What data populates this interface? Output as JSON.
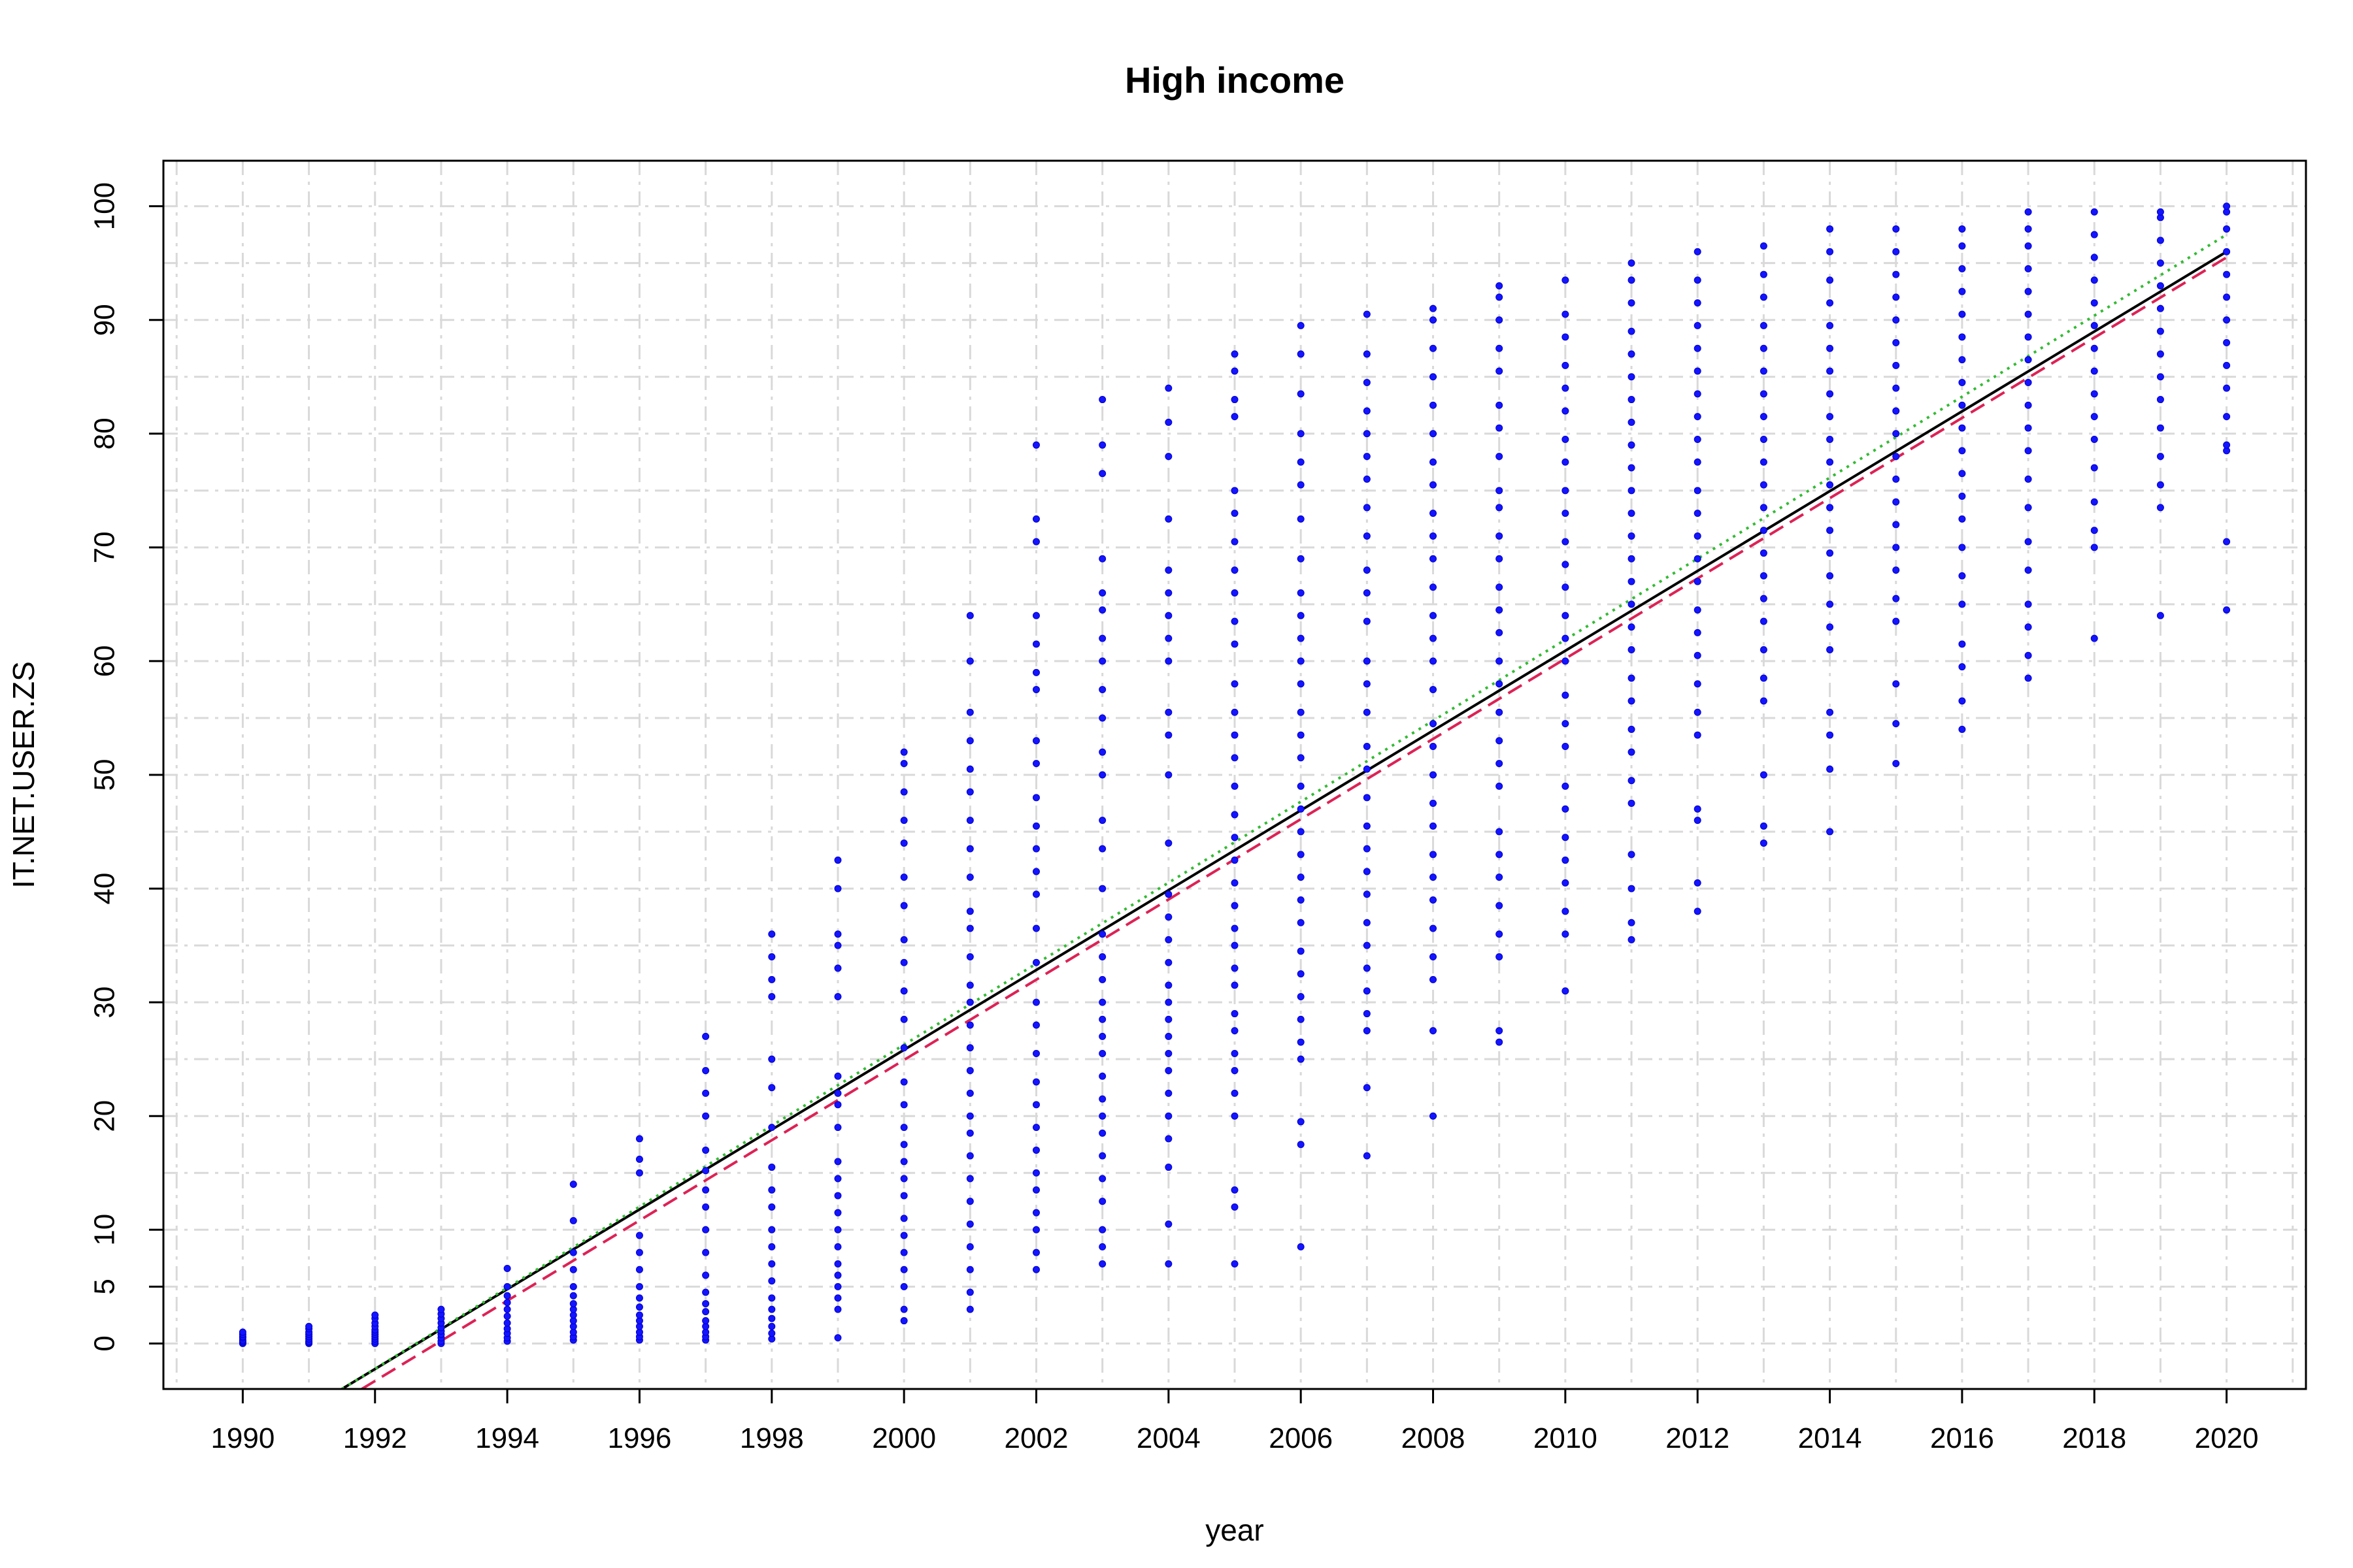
{
  "chart_data": {
    "type": "scatter",
    "title": "High income",
    "xlabel": "year",
    "ylabel": "IT.NET.USER.ZS",
    "xlim": [
      1988.8,
      2021.2
    ],
    "ylim": [
      -4,
      104
    ],
    "x_ticks": [
      "1990",
      "1992",
      "1994",
      "1996",
      "1998",
      "2000",
      "2002",
      "2004",
      "2006",
      "2008",
      "2010",
      "2012",
      "2014",
      "2016",
      "2018",
      "2020"
    ],
    "y_ticks": [
      "0",
      "5",
      "10",
      "20",
      "30",
      "40",
      "50",
      "60",
      "70",
      "80",
      "90",
      "100"
    ],
    "grid": true,
    "point_color": "#0000ff",
    "points_by_year": [
      {
        "year": 1990,
        "values": [
          0,
          0.1,
          0.2,
          0.3,
          0.5,
          0.6,
          0.8,
          1.0
        ]
      },
      {
        "year": 1991,
        "values": [
          0,
          0.1,
          0.2,
          0.4,
          0.6,
          0.8,
          1.0,
          1.3,
          1.5
        ]
      },
      {
        "year": 1992,
        "values": [
          0,
          0.2,
          0.4,
          0.6,
          0.8,
          1.0,
          1.2,
          1.5,
          1.8,
          2.2,
          2.5
        ]
      },
      {
        "year": 1993,
        "values": [
          0,
          0.2,
          0.5,
          0.8,
          1.1,
          1.4,
          1.8,
          2.2,
          2.6,
          3.0
        ]
      },
      {
        "year": 1994,
        "values": [
          0.2,
          0.5,
          0.9,
          1.3,
          1.8,
          2.4,
          3.0,
          3.6,
          4.2,
          5.0,
          6.6
        ]
      },
      {
        "year": 1995,
        "values": [
          0.3,
          0.6,
          1.0,
          1.5,
          2.0,
          2.5,
          3.0,
          3.5,
          4.2,
          5.0,
          6.5,
          8.0,
          10.8,
          14.0
        ]
      },
      {
        "year": 1996,
        "values": [
          0.3,
          0.6,
          1.0,
          1.5,
          2.0,
          2.5,
          3.2,
          4.0,
          5.0,
          6.5,
          8.0,
          9.5,
          15.0,
          16.2,
          18.0
        ]
      },
      {
        "year": 1997,
        "values": [
          0.3,
          0.6,
          1.0,
          1.5,
          2.0,
          2.8,
          3.5,
          4.5,
          6.0,
          8.0,
          10.0,
          12.0,
          13.5,
          15.2,
          17.0,
          20.0,
          22.0,
          24.0,
          27.0
        ]
      },
      {
        "year": 1998,
        "values": [
          0.4,
          0.9,
          1.5,
          2.2,
          3.0,
          4.0,
          5.5,
          7.0,
          8.5,
          10.0,
          12.0,
          13.5,
          15.5,
          19.0,
          22.5,
          25.0,
          30.5,
          32.0,
          34.0,
          36.0
        ]
      },
      {
        "year": 1999,
        "values": [
          0.5,
          3.0,
          4.0,
          5.0,
          6.0,
          7.0,
          8.5,
          10.0,
          11.5,
          13.0,
          14.5,
          16.0,
          19.0,
          21.0,
          22.0,
          23.5,
          30.5,
          33.0,
          35.0,
          36.0,
          40.0,
          42.5
        ]
      },
      {
        "year": 2000,
        "values": [
          2.0,
          3.0,
          5.0,
          6.5,
          8.0,
          9.5,
          11.0,
          13.0,
          14.5,
          16.0,
          17.5,
          19.0,
          21.0,
          23.0,
          26.0,
          28.5,
          31.0,
          33.5,
          35.5,
          38.5,
          41.0,
          44.0,
          46.0,
          48.5,
          51.0,
          52.0
        ]
      },
      {
        "year": 2001,
        "values": [
          3.0,
          4.5,
          6.5,
          8.5,
          10.5,
          12.5,
          14.5,
          16.5,
          18.5,
          20.0,
          22.0,
          24.0,
          26.0,
          28.0,
          30.0,
          31.5,
          34.0,
          36.5,
          38.0,
          41.0,
          43.5,
          46.0,
          48.5,
          50.5,
          53.0,
          55.5,
          60.0,
          64.0
        ]
      },
      {
        "year": 2002,
        "values": [
          6.5,
          8.0,
          10.0,
          11.5,
          13.5,
          15.0,
          17.0,
          19.0,
          21.0,
          23.0,
          25.5,
          28.0,
          30.0,
          33.5,
          36.5,
          39.5,
          41.5,
          43.5,
          45.5,
          48.0,
          51.0,
          53.0,
          57.5,
          59.0,
          61.5,
          64.0,
          70.5,
          72.5,
          79.0
        ]
      },
      {
        "year": 2003,
        "values": [
          7.0,
          8.5,
          10.0,
          12.5,
          14.5,
          16.5,
          18.5,
          20.0,
          21.5,
          23.5,
          25.5,
          27.0,
          28.5,
          30.0,
          32.0,
          34.0,
          36.0,
          40.0,
          43.5,
          46.0,
          50.0,
          52.0,
          55.0,
          57.5,
          60.0,
          62.0,
          64.5,
          66.0,
          69.0,
          76.5,
          79.0,
          83.0
        ]
      },
      {
        "year": 2004,
        "values": [
          7.0,
          10.5,
          15.5,
          18.0,
          20.0,
          22.0,
          24.0,
          25.5,
          27.0,
          28.5,
          30.0,
          31.5,
          33.5,
          35.5,
          37.5,
          39.5,
          44.0,
          50.0,
          53.5,
          55.5,
          60.0,
          62.0,
          64.0,
          66.0,
          68.0,
          72.5,
          78.0,
          81.0,
          84.0
        ]
      },
      {
        "year": 2005,
        "values": [
          7.0,
          12.0,
          13.5,
          20.0,
          22.0,
          24.0,
          25.5,
          27.5,
          29.0,
          31.5,
          33.0,
          35.0,
          36.5,
          38.5,
          40.5,
          42.5,
          44.5,
          46.5,
          49.0,
          51.5,
          53.5,
          55.5,
          58.0,
          61.5,
          63.5,
          66.0,
          68.0,
          70.5,
          73.0,
          75.0,
          81.5,
          83.0,
          85.5,
          87.0
        ]
      },
      {
        "year": 2006,
        "values": [
          8.5,
          17.5,
          19.5,
          25.0,
          26.5,
          28.5,
          30.5,
          32.5,
          34.5,
          37.0,
          39.0,
          41.0,
          43.0,
          45.0,
          47.0,
          49.0,
          51.5,
          53.5,
          55.5,
          58.0,
          60.0,
          62.0,
          64.0,
          66.0,
          69.0,
          72.5,
          75.5,
          77.5,
          80.0,
          83.5,
          87.0,
          89.5
        ]
      },
      {
        "year": 2007,
        "values": [
          16.5,
          22.5,
          27.5,
          29.0,
          31.0,
          33.0,
          35.0,
          37.0,
          39.5,
          41.5,
          43.5,
          45.5,
          48.0,
          50.5,
          52.5,
          55.5,
          58.0,
          60.0,
          63.5,
          66.0,
          68.0,
          71.0,
          73.5,
          76.0,
          78.0,
          80.0,
          82.0,
          84.5,
          87.0,
          90.5
        ]
      },
      {
        "year": 2008,
        "values": [
          20.0,
          27.5,
          32.0,
          34.0,
          36.5,
          39.0,
          41.0,
          43.0,
          45.5,
          47.5,
          50.0,
          52.5,
          54.5,
          57.5,
          60.0,
          62.0,
          64.0,
          66.5,
          69.0,
          71.0,
          73.0,
          75.5,
          77.5,
          80.0,
          82.5,
          85.0,
          87.5,
          90.0,
          91.0
        ]
      },
      {
        "year": 2009,
        "values": [
          26.5,
          27.5,
          34.0,
          36.0,
          38.5,
          41.0,
          43.0,
          45.0,
          49.0,
          51.0,
          53.0,
          55.5,
          58.0,
          60.0,
          62.5,
          64.5,
          66.5,
          69.0,
          71.0,
          73.5,
          75.0,
          78.0,
          80.5,
          82.5,
          85.5,
          87.5,
          90.0,
          92.0,
          93.0
        ]
      },
      {
        "year": 2010,
        "values": [
          31.0,
          36.0,
          38.0,
          40.5,
          42.5,
          44.5,
          47.0,
          49.0,
          52.5,
          54.5,
          57.0,
          60.0,
          62.0,
          64.0,
          66.5,
          68.5,
          70.5,
          73.0,
          75.0,
          77.5,
          79.5,
          82.0,
          84.0,
          86.0,
          88.5,
          90.5,
          93.5
        ]
      },
      {
        "year": 2011,
        "values": [
          35.5,
          37.0,
          40.0,
          43.0,
          47.5,
          49.5,
          52.0,
          54.0,
          56.5,
          58.5,
          61.0,
          63.0,
          65.0,
          67.0,
          69.0,
          71.0,
          73.0,
          75.0,
          77.0,
          79.0,
          81.0,
          83.0,
          85.0,
          87.0,
          89.0,
          91.5,
          93.5,
          95.0
        ]
      },
      {
        "year": 2012,
        "values": [
          38.0,
          40.5,
          46.0,
          47.0,
          53.5,
          55.5,
          58.0,
          60.5,
          62.5,
          64.5,
          67.0,
          69.0,
          71.0,
          73.0,
          75.0,
          77.5,
          79.5,
          81.5,
          83.5,
          85.5,
          87.5,
          89.5,
          91.5,
          93.5,
          96.0
        ]
      },
      {
        "year": 2013,
        "values": [
          44.0,
          45.5,
          50.0,
          56.5,
          58.5,
          61.0,
          63.5,
          65.5,
          67.5,
          69.5,
          71.5,
          73.5,
          75.5,
          77.5,
          79.5,
          81.5,
          83.5,
          85.5,
          87.5,
          89.5,
          92.0,
          94.0,
          96.5
        ]
      },
      {
        "year": 2014,
        "values": [
          45.0,
          50.5,
          53.5,
          55.5,
          61.0,
          63.0,
          65.0,
          67.5,
          69.5,
          71.5,
          73.5,
          75.5,
          77.5,
          79.5,
          81.5,
          83.5,
          85.5,
          87.5,
          89.5,
          91.5,
          93.5,
          96.0,
          98.0
        ]
      },
      {
        "year": 2015,
        "values": [
          51.0,
          54.5,
          58.0,
          63.5,
          65.5,
          68.0,
          70.0,
          72.0,
          74.0,
          76.0,
          78.0,
          80.0,
          82.0,
          84.0,
          86.0,
          88.0,
          90.0,
          92.0,
          94.0,
          96.0,
          98.0
        ]
      },
      {
        "year": 2016,
        "values": [
          54.0,
          56.5,
          59.5,
          61.5,
          65.0,
          67.5,
          70.0,
          72.5,
          74.5,
          76.5,
          78.5,
          80.5,
          82.5,
          84.5,
          86.5,
          88.5,
          90.5,
          92.5,
          94.5,
          96.5,
          98.0
        ]
      },
      {
        "year": 2017,
        "values": [
          58.5,
          60.5,
          63.0,
          65.0,
          68.0,
          70.5,
          73.5,
          76.0,
          78.5,
          80.5,
          82.5,
          84.5,
          86.5,
          88.5,
          90.5,
          92.5,
          94.5,
          96.5,
          98.0,
          99.5
        ]
      },
      {
        "year": 2018,
        "values": [
          62.0,
          70.0,
          71.5,
          74.0,
          77.0,
          79.5,
          81.5,
          83.5,
          85.5,
          87.5,
          89.5,
          91.5,
          93.5,
          95.5,
          97.5,
          99.5
        ]
      },
      {
        "year": 2019,
        "values": [
          64.0,
          73.5,
          75.5,
          78.0,
          80.5,
          83.0,
          85.0,
          87.0,
          89.0,
          91.0,
          93.0,
          95.0,
          97.0,
          99.0,
          99.5
        ]
      },
      {
        "year": 2020,
        "values": [
          64.5,
          70.5,
          78.5,
          79.0,
          81.5,
          84.0,
          86.0,
          88.0,
          90.0,
          92.0,
          94.0,
          96.0,
          98.0,
          99.5,
          100.0
        ]
      }
    ],
    "lines": [
      {
        "style": "solid",
        "color": "#000000",
        "from": [
          1991.5,
          -4
        ],
        "to": [
          2020,
          96
        ]
      },
      {
        "style": "dotted",
        "color": "#33bb33",
        "from": [
          1991.5,
          -4
        ],
        "to": [
          2020,
          97.5
        ]
      },
      {
        "style": "dashed",
        "color": "#dd2255",
        "from": [
          1991.8,
          -4
        ],
        "to": [
          2020,
          95.5
        ]
      }
    ]
  }
}
